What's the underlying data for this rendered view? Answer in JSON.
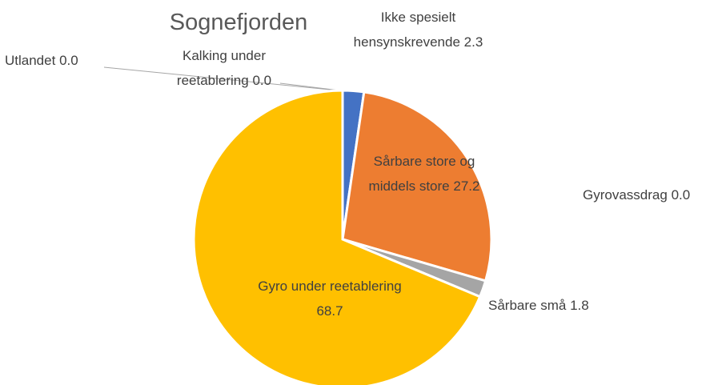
{
  "chart_data": {
    "type": "pie",
    "title": "Sognefjorden",
    "categories": [
      "Ikke spesielt hensynskrevende",
      "Sårbare store og middels store",
      "Sårbare små",
      "Gyrovassdrag",
      "Gyro under reetablering",
      "Kalking under reetablering",
      "Utlandet"
    ],
    "values": [
      2.3,
      27.2,
      1.8,
      0,
      68.7,
      0,
      0
    ],
    "value_labels": [
      "2.3",
      "27.2",
      "1.8",
      "0.0",
      "68.7",
      "0.0",
      "0.0"
    ],
    "colors": [
      "#4472c4",
      "#ed7d31",
      "#a5a5a5",
      "#5b9bd5",
      "#ffc000",
      "#70ad47",
      "#264478"
    ]
  }
}
